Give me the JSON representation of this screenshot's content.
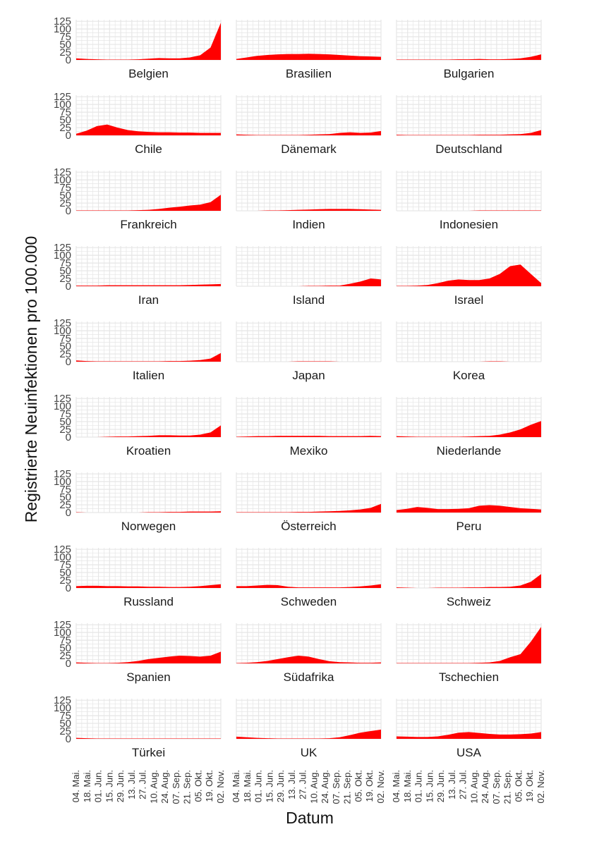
{
  "chart_data": {
    "type": "area",
    "facet_grid": "small-multiples",
    "xlabel": "Datum",
    "ylabel": "Registrierte Neuinfektionen pro 100.000",
    "ylim": [
      0,
      130
    ],
    "yticks": [
      0,
      25,
      50,
      75,
      100,
      125
    ],
    "ytick_labels": [
      "0",
      "25",
      "50",
      "75",
      "100",
      "125"
    ],
    "xticks": [
      "04. Mai.",
      "18. Mai.",
      "01. Jun.",
      "15. Jun.",
      "29. Jun.",
      "13. Jul.",
      "27. Jul.",
      "10. Aug.",
      "24. Aug.",
      "07. Sep.",
      "21. Sep.",
      "05. Okt.",
      "19. Okt.",
      "02. Nov."
    ],
    "grid": true,
    "fill_color": "#ff0000",
    "panel_background": "#ffffff",
    "grid_color": "#e6e6e6",
    "x_fraction_note": "values sampled at equally spaced dates from 04. Mai. to 02. Nov.",
    "series": [
      {
        "name": "Belgien",
        "values": [
          5,
          3,
          2,
          1,
          1,
          1,
          2,
          4,
          6,
          5,
          5,
          8,
          15,
          40,
          120
        ]
      },
      {
        "name": "Brasilien",
        "values": [
          3,
          8,
          13,
          16,
          18,
          19,
          19,
          20,
          19,
          18,
          16,
          14,
          12,
          11,
          10
        ]
      },
      {
        "name": "Bulgarien",
        "values": [
          1,
          1,
          1,
          1,
          1,
          1,
          2,
          2,
          3,
          2,
          2,
          3,
          5,
          10,
          18
        ]
      },
      {
        "name": "Chile",
        "values": [
          5,
          15,
          30,
          35,
          25,
          17,
          13,
          11,
          10,
          10,
          9,
          9,
          8,
          8,
          8
        ]
      },
      {
        "name": "Dänemark",
        "values": [
          3,
          2,
          1,
          1,
          1,
          1,
          1,
          2,
          3,
          4,
          8,
          10,
          8,
          9,
          14
        ]
      },
      {
        "name": "Deutschland",
        "values": [
          2,
          1,
          1,
          1,
          1,
          1,
          1,
          1,
          2,
          2,
          2,
          3,
          4,
          8,
          17
        ]
      },
      {
        "name": "Frankreich",
        "values": [
          1,
          1,
          1,
          1,
          1,
          1,
          2,
          3,
          6,
          10,
          13,
          17,
          20,
          28,
          52
        ]
      },
      {
        "name": "Indien",
        "values": [
          0,
          0,
          0,
          1,
          1,
          2,
          3,
          4,
          5,
          6,
          6,
          6,
          5,
          4,
          3
        ]
      },
      {
        "name": "Indonesien",
        "values": [
          0,
          0,
          0,
          0,
          0,
          0,
          0,
          0,
          1,
          1,
          1,
          1,
          1,
          1,
          1
        ]
      },
      {
        "name": "Iran",
        "values": [
          2,
          2,
          2,
          3,
          3,
          3,
          3,
          3,
          3,
          3,
          3,
          4,
          5,
          6,
          7
        ]
      },
      {
        "name": "Island",
        "values": [
          0,
          0,
          0,
          0,
          0,
          0,
          0,
          1,
          1,
          2,
          2,
          8,
          15,
          25,
          22
        ]
      },
      {
        "name": "Israel",
        "values": [
          1,
          1,
          2,
          4,
          10,
          18,
          22,
          20,
          20,
          25,
          40,
          65,
          70,
          40,
          10
        ]
      },
      {
        "name": "Italien",
        "values": [
          4,
          2,
          1,
          1,
          1,
          1,
          1,
          1,
          1,
          2,
          2,
          3,
          5,
          10,
          28
        ]
      },
      {
        "name": "Japan",
        "values": [
          0,
          0,
          0,
          0,
          0,
          0,
          1,
          1,
          1,
          1,
          0,
          0,
          0,
          0,
          0
        ]
      },
      {
        "name": "Korea",
        "values": [
          0,
          0,
          0,
          0,
          0,
          0,
          0,
          0,
          0,
          1,
          1,
          0,
          0,
          0,
          0
        ]
      },
      {
        "name": "Kroatien",
        "values": [
          0,
          0,
          0,
          1,
          2,
          2,
          3,
          4,
          6,
          6,
          5,
          5,
          8,
          15,
          38
        ]
      },
      {
        "name": "Mexiko",
        "values": [
          1,
          2,
          3,
          3,
          4,
          4,
          4,
          4,
          4,
          3,
          3,
          3,
          3,
          4,
          3
        ]
      },
      {
        "name": "Niederlande",
        "values": [
          3,
          2,
          1,
          1,
          1,
          1,
          1,
          2,
          3,
          4,
          8,
          15,
          25,
          40,
          52
        ]
      },
      {
        "name": "Norwegen",
        "values": [
          1,
          0,
          0,
          0,
          0,
          0,
          0,
          1,
          1,
          2,
          2,
          3,
          3,
          3,
          4
        ]
      },
      {
        "name": "Österreich",
        "values": [
          1,
          1,
          1,
          1,
          1,
          1,
          2,
          2,
          3,
          4,
          5,
          7,
          10,
          15,
          28
        ]
      },
      {
        "name": "Peru",
        "values": [
          8,
          12,
          18,
          15,
          11,
          11,
          12,
          14,
          22,
          24,
          22,
          18,
          14,
          12,
          10
        ]
      },
      {
        "name": "Russland",
        "values": [
          6,
          7,
          7,
          6,
          6,
          5,
          5,
          4,
          4,
          3,
          3,
          4,
          6,
          9,
          12
        ]
      },
      {
        "name": "Schweden",
        "values": [
          6,
          6,
          8,
          10,
          9,
          4,
          2,
          2,
          2,
          2,
          2,
          3,
          5,
          8,
          12
        ]
      },
      {
        "name": "Schweiz",
        "values": [
          2,
          1,
          0,
          0,
          1,
          1,
          1,
          2,
          2,
          3,
          3,
          4,
          8,
          20,
          45
        ]
      },
      {
        "name": "Spanien",
        "values": [
          3,
          2,
          1,
          1,
          2,
          4,
          8,
          14,
          18,
          22,
          25,
          24,
          22,
          25,
          38
        ]
      },
      {
        "name": "Südafrika",
        "values": [
          1,
          2,
          4,
          8,
          14,
          20,
          25,
          22,
          14,
          7,
          4,
          3,
          2,
          2,
          3
        ]
      },
      {
        "name": "Tschechien",
        "values": [
          1,
          1,
          1,
          1,
          1,
          1,
          1,
          1,
          2,
          3,
          8,
          20,
          30,
          70,
          118
        ]
      },
      {
        "name": "Türkei",
        "values": [
          3,
          2,
          1,
          1,
          1,
          1,
          1,
          1,
          1,
          1,
          1,
          1,
          1,
          1,
          1
        ]
      },
      {
        "name": "UK",
        "values": [
          7,
          5,
          3,
          2,
          1,
          1,
          1,
          1,
          1,
          2,
          5,
          12,
          20,
          25,
          30
        ]
      },
      {
        "name": "USA",
        "values": [
          8,
          7,
          6,
          6,
          8,
          13,
          20,
          22,
          19,
          16,
          14,
          14,
          15,
          17,
          22
        ]
      }
    ]
  }
}
